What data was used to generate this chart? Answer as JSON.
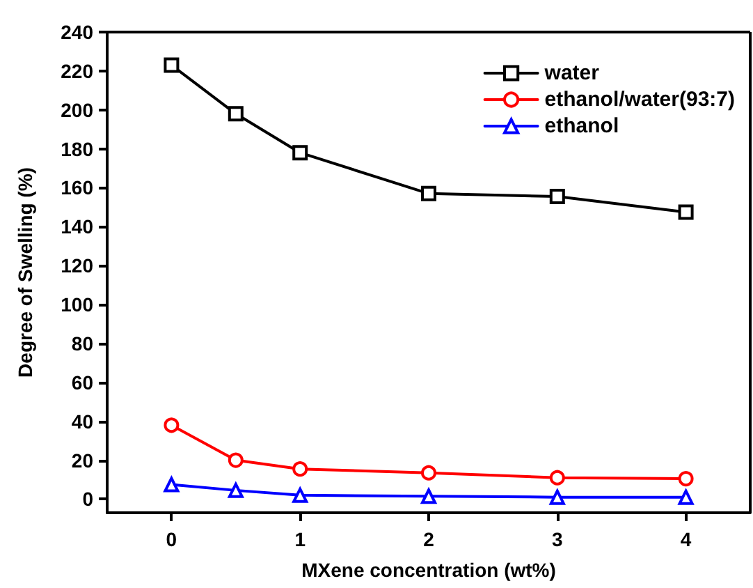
{
  "chart_data": {
    "type": "line",
    "xlabel": "MXene concentration (wt%)",
    "ylabel": "Degree of Swelling (%)",
    "x": [
      0,
      0.5,
      1,
      2,
      3,
      4
    ],
    "series": [
      {
        "name": "water",
        "color": "#000000",
        "marker": "square",
        "values": [
          223,
          198,
          178,
          157,
          155.5,
          147.5
        ]
      },
      {
        "name": "ethanol/water(93:7)",
        "color": "#ff0000",
        "marker": "circle",
        "values": [
          38,
          20,
          15.5,
          13.5,
          11,
          10.5
        ]
      },
      {
        "name": "ethanol",
        "color": "#0000ff",
        "marker": "triangle",
        "values": [
          7.5,
          4.5,
          2,
          1.5,
          1,
          1
        ]
      }
    ],
    "xlim": [
      -0.5,
      4.5
    ],
    "xticks": [
      0,
      1,
      2,
      3,
      4
    ],
    "ylim": [
      -7,
      240
    ],
    "yticks": [
      0,
      20,
      40,
      60,
      80,
      100,
      120,
      140,
      160,
      180,
      200,
      220,
      240
    ],
    "grid": false,
    "legend": "top right"
  }
}
